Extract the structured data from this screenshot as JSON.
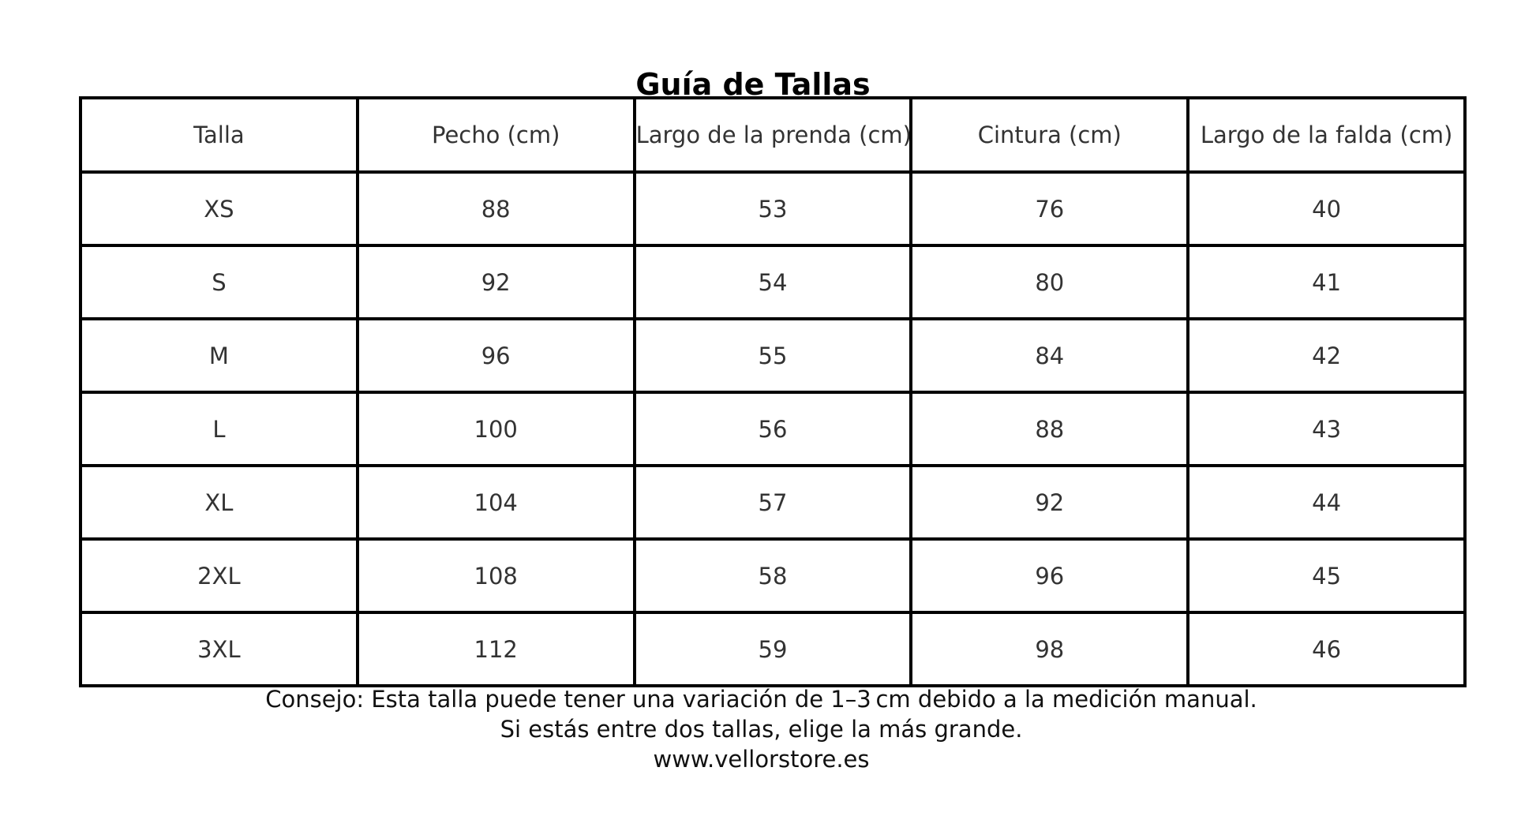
{
  "title": "Guía de Tallas",
  "chart_data": {
    "type": "table",
    "title": "Guía de Tallas",
    "columns": [
      "Talla",
      "Pecho (cm)",
      "Largo de la prenda (cm)",
      "Cintura (cm)",
      "Largo de la falda (cm)"
    ],
    "rows": [
      [
        "XS",
        88,
        53,
        76,
        40
      ],
      [
        "S",
        92,
        54,
        80,
        41
      ],
      [
        "M",
        96,
        55,
        84,
        42
      ],
      [
        "L",
        100,
        56,
        88,
        43
      ],
      [
        "XL",
        104,
        57,
        92,
        44
      ],
      [
        "2XL",
        108,
        58,
        96,
        45
      ],
      [
        "3XL",
        112,
        59,
        98,
        46
      ]
    ],
    "layout": {
      "grid": "full-borders",
      "title_position": "top-center-overlapping-table"
    }
  },
  "footer": {
    "lines": [
      "Consejo: Esta talla puede tener una variación de 1–3 cm debido a la medición manual.",
      "Si estás entre dos tallas, elige la más grande.",
      "www.vellorstore.es"
    ]
  },
  "colors": {
    "background": "#ffffff",
    "table_border": "#000000",
    "title_text": "#000000",
    "cell_text": "#333333",
    "footer_text": "#111111"
  }
}
